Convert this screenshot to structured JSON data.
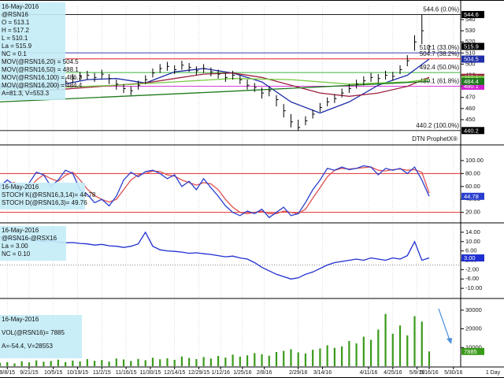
{
  "chart_data": [
    {
      "type": "ohlc",
      "info_lines": [
        "16-May-2016",
        "@RSN16",
        "O = 513.1",
        "H = 517.2",
        "L = 510.1",
        "La = 515.9",
        "NC = 0.1",
        "MOV(@RSN16,20) = 504.5",
        "MOV(@RSN16,50) = 488.1",
        "MOV(@RSN16,100) = 486.3",
        "MOV(@RSN16,200) = 484.4",
        "A=81.3, V=553.3"
      ],
      "watermark": "DTN ProphetX®",
      "xlim": [
        0,
        190
      ],
      "xticks": [
        {
          "value": 3,
          "label": "9/8/15"
        },
        {
          "value": 12,
          "label": "9/21/15"
        },
        {
          "value": 22,
          "label": "10/5/15"
        },
        {
          "value": 32,
          "label": "10/19/15"
        },
        {
          "value": 42,
          "label": "11/2/15"
        },
        {
          "value": 52,
          "label": "11/16/15"
        },
        {
          "value": 62,
          "label": "11/30/15"
        },
        {
          "value": 72,
          "label": "12/14/15"
        },
        {
          "value": 82,
          "label": "12/29/15"
        },
        {
          "value": 91,
          "label": "1/12/16"
        },
        {
          "value": 100,
          "label": "1/25/16"
        },
        {
          "value": 109,
          "label": "2/8/16"
        },
        {
          "value": 123,
          "label": "2/29/16"
        },
        {
          "value": 133,
          "label": "3/14/16"
        },
        {
          "value": 152,
          "label": "4/11/16"
        },
        {
          "value": 162,
          "label": "4/25/16"
        },
        {
          "value": 172,
          "label": "5/9/16"
        },
        {
          "value": 177,
          "label": "5/16/16"
        },
        {
          "value": 187,
          "label": "5/30/16"
        }
      ],
      "ylim": [
        428,
        552
      ],
      "yticks": [
        450,
        460,
        470,
        480,
        490,
        500,
        510,
        520,
        530,
        540
      ],
      "x": [
        0,
        3,
        6,
        9,
        12,
        15,
        18,
        21,
        24,
        27,
        30,
        33,
        36,
        39,
        42,
        45,
        48,
        51,
        54,
        57,
        60,
        63,
        66,
        69,
        72,
        75,
        78,
        81,
        84,
        87,
        90,
        93,
        96,
        99,
        102,
        105,
        108,
        111,
        114,
        117,
        120,
        123,
        126,
        129,
        132,
        135,
        138,
        141,
        144,
        147,
        150,
        153,
        156,
        159,
        162,
        165,
        168,
        171,
        174,
        177
      ],
      "high": [
        483,
        481,
        484,
        480,
        482,
        486,
        484,
        487,
        485,
        488,
        491,
        493,
        494,
        492,
        495,
        491,
        486,
        482,
        480,
        485,
        490,
        496,
        500,
        502,
        499,
        503,
        501,
        498,
        500,
        497,
        495,
        492,
        494,
        490,
        486,
        483,
        479,
        480,
        472,
        464,
        455,
        450,
        453,
        459,
        465,
        470,
        473,
        478,
        482,
        486,
        489,
        492,
        491,
        494,
        493,
        499,
        508,
        526,
        544.6,
        517.2
      ],
      "low": [
        475,
        473,
        477,
        472,
        474,
        478,
        476,
        479,
        477,
        480,
        483,
        485,
        486,
        484,
        487,
        482,
        477,
        474,
        472,
        477,
        482,
        488,
        492,
        494,
        491,
        495,
        493,
        490,
        492,
        489,
        487,
        484,
        486,
        482,
        477,
        475,
        469,
        471,
        462,
        452,
        443,
        440.2,
        445,
        451,
        457,
        462,
        465,
        470,
        474,
        478,
        481,
        484,
        483,
        486,
        485,
        491,
        498,
        512,
        518,
        510.1
      ],
      "close": [
        479,
        477,
        481,
        476,
        478,
        482,
        480,
        483,
        481,
        484,
        487,
        489,
        490,
        488,
        491,
        487,
        482,
        478,
        476,
        481,
        486,
        492,
        496,
        498,
        495,
        499,
        497,
        494,
        496,
        493,
        491,
        488,
        490,
        486,
        481,
        479,
        474,
        476,
        468,
        458,
        448,
        443,
        449,
        455,
        461,
        466,
        469,
        474,
        478,
        482,
        485,
        488,
        487,
        490,
        489,
        495,
        503,
        520,
        530,
        515.9
      ],
      "close_color": "#000000",
      "bar_color": "#000000",
      "series": [
        {
          "name": "MOV(@RSN16,20)",
          "color": "#1f2ea8",
          "x": [
            0,
            12,
            24,
            36,
            48,
            60,
            72,
            84,
            96,
            108,
            120,
            132,
            144,
            156,
            168,
            177
          ],
          "values": [
            480,
            479,
            481,
            486,
            487,
            483,
            493,
            496,
            492,
            484,
            466,
            456,
            466,
            481,
            490,
            504.5
          ]
        },
        {
          "name": "MOV(@RSN16,50)",
          "color": "#9c2340",
          "x": [
            0,
            12,
            24,
            36,
            48,
            60,
            72,
            84,
            96,
            108,
            120,
            132,
            144,
            156,
            168,
            177
          ],
          "values": [
            474,
            476,
            477,
            479,
            481,
            483,
            487,
            491,
            492,
            488,
            481,
            474,
            471,
            474,
            480,
            488.1
          ]
        },
        {
          "name": "MOV(@RSN16,100)",
          "color": "#7ac943",
          "x": [
            0,
            24,
            48,
            72,
            96,
            120,
            144,
            168,
            177
          ],
          "values": [
            478,
            479,
            481,
            484,
            487,
            486,
            482,
            484,
            486.3
          ]
        },
        {
          "name": "MOV(@RSN16,200)",
          "color": "#1e7a1e",
          "x": [
            0,
            90,
            177
          ],
          "values": [
            466,
            475,
            484.4
          ]
        }
      ],
      "fib_levels": [
        {
          "value": 544.6,
          "label": "544.6 (0.0%)",
          "color": "#000000",
          "box": true
        },
        {
          "value": 510.1,
          "label": "510.1 (33.0%)",
          "color": "#3c3cb4",
          "box": false
        },
        {
          "value": 504.7,
          "label": "504.7 (38.2%)",
          "color": "#e02020",
          "box": false
        },
        {
          "value": 492.4,
          "label": "492.4 (50.0%)",
          "color": "#3cb43c",
          "box": false
        },
        {
          "value": 480.1,
          "label": "480.1 (61.8%)",
          "color": "#d020d0",
          "box": true
        },
        {
          "value": 440.2,
          "label": "440.2 (100.0%)",
          "color": "#000000",
          "box": true
        }
      ]
    },
    {
      "type": "line",
      "info_lines": [
        "16-May-2016",
        "STOCH K(@RSN16,3,14)= 44.78",
        "STOCH D(@RSN16,3)= 49.76"
      ],
      "ylim": [
        5,
        123
      ],
      "yticks": [
        {
          "value": 100,
          "label": "100.00"
        },
        {
          "value": 80,
          "label": "80.00"
        },
        {
          "value": 60,
          "label": "60.00"
        },
        {
          "value": 40,
          "label": "40.00"
        },
        {
          "value": 20,
          "label": "20.00"
        }
      ],
      "levels": [
        80,
        20
      ],
      "level_color": "#e03030",
      "x": [
        0,
        3,
        6,
        9,
        12,
        15,
        18,
        21,
        24,
        27,
        30,
        33,
        36,
        39,
        42,
        45,
        48,
        51,
        54,
        57,
        60,
        63,
        66,
        69,
        72,
        75,
        78,
        81,
        84,
        87,
        90,
        93,
        96,
        99,
        102,
        105,
        108,
        111,
        114,
        117,
        120,
        123,
        126,
        129,
        132,
        135,
        138,
        141,
        144,
        147,
        150,
        153,
        156,
        159,
        162,
        165,
        168,
        171,
        174,
        177
      ],
      "series": [
        {
          "name": "STOCH D",
          "color": "#e05050",
          "box": false,
          "values": [
            58,
            65,
            66,
            58,
            56,
            70,
            78,
            72,
            68,
            77,
            82,
            70,
            56,
            46,
            40,
            36,
            40,
            55,
            70,
            78,
            80,
            84,
            83,
            78,
            76,
            70,
            66,
            62,
            66,
            64,
            55,
            40,
            28,
            20,
            18,
            20,
            22,
            18,
            18,
            22,
            20,
            18,
            25,
            42,
            58,
            75,
            85,
            88,
            87,
            88,
            89,
            90,
            85,
            84,
            86,
            87,
            85,
            86,
            82,
            49.76
          ]
        },
        {
          "name": "STOCH K",
          "color": "#2a3fcf",
          "box": true,
          "values": [
            60,
            70,
            62,
            45,
            65,
            82,
            78,
            60,
            70,
            85,
            80,
            55,
            48,
            35,
            40,
            30,
            45,
            70,
            82,
            75,
            83,
            85,
            80,
            72,
            78,
            60,
            68,
            55,
            72,
            58,
            45,
            30,
            20,
            15,
            22,
            18,
            25,
            12,
            20,
            28,
            15,
            18,
            35,
            55,
            70,
            88,
            85,
            90,
            86,
            88,
            92,
            90,
            78,
            88,
            85,
            88,
            80,
            90,
            70,
            44.78
          ]
        }
      ]
    },
    {
      "type": "line",
      "info_lines": [
        "16-May-2016",
        "@RSN16-@RSX16",
        "La = 3.00",
        "NC = 0.10"
      ],
      "ylim": [
        -14,
        17
      ],
      "yticks": [
        {
          "value": 14,
          "label": "14.00"
        },
        {
          "value": 10,
          "label": "10.00"
        },
        {
          "value": 6,
          "label": "6.00"
        },
        {
          "value": 2,
          "label": "2.00"
        },
        {
          "value": -2,
          "label": "-2.00"
        },
        {
          "value": -6,
          "label": "-6.00"
        },
        {
          "value": -10,
          "label": "-10.00"
        }
      ],
      "zero_line": true,
      "x": [
        0,
        3,
        6,
        9,
        12,
        15,
        18,
        21,
        24,
        27,
        30,
        33,
        36,
        39,
        42,
        45,
        48,
        51,
        54,
        57,
        60,
        63,
        66,
        69,
        72,
        75,
        78,
        81,
        84,
        87,
        90,
        93,
        96,
        99,
        102,
        105,
        108,
        111,
        114,
        117,
        120,
        123,
        126,
        129,
        132,
        135,
        138,
        141,
        144,
        147,
        150,
        153,
        156,
        159,
        162,
        165,
        168,
        171,
        174,
        177
      ],
      "series": [
        {
          "name": "@RSN16-@RSX16",
          "color": "#1f2ecf",
          "box": true,
          "last_label": "3.00",
          "values": [
            12,
            11.5,
            11,
            11.2,
            10.8,
            10.5,
            10,
            10.4,
            9.8,
            9.5,
            9.6,
            9.2,
            9,
            8.5,
            8.8,
            8.2,
            8,
            7.5,
            8,
            9,
            14,
            8,
            6.5,
            6,
            5.8,
            5.5,
            5,
            5.2,
            4.8,
            4.5,
            4,
            3.5,
            3.8,
            3,
            2.5,
            1,
            -1,
            -2.5,
            -4,
            -5,
            -6,
            -5.5,
            -4,
            -3,
            -1.5,
            0,
            1,
            1.5,
            2,
            2.5,
            2,
            3,
            2.5,
            2,
            3,
            2.5,
            4,
            10,
            2,
            3
          ]
        }
      ]
    },
    {
      "type": "bar",
      "info_lines": [
        "16-May-2016",
        "VOL(@RSN16)= 7885",
        "A=-54.4, V=28553"
      ],
      "ylim": [
        0,
        35000
      ],
      "yticks": [
        30000,
        20000,
        10000
      ],
      "color": "#3a9a1a",
      "x": [
        0,
        3,
        6,
        9,
        12,
        15,
        18,
        21,
        24,
        27,
        30,
        33,
        36,
        39,
        42,
        45,
        48,
        51,
        54,
        57,
        60,
        63,
        66,
        69,
        72,
        75,
        78,
        81,
        84,
        87,
        90,
        93,
        96,
        99,
        102,
        105,
        108,
        111,
        114,
        117,
        120,
        123,
        126,
        129,
        132,
        135,
        138,
        141,
        144,
        147,
        150,
        153,
        156,
        159,
        162,
        165,
        168,
        171,
        174,
        177
      ],
      "values": [
        1800,
        2200,
        1500,
        2600,
        2000,
        3100,
        2400,
        2800,
        3500,
        2200,
        3000,
        2600,
        3800,
        2900,
        3300,
        2500,
        4100,
        3600,
        2800,
        3900,
        3200,
        4500,
        3700,
        4200,
        3400,
        5200,
        4400,
        3800,
        4900,
        4100,
        5500,
        4600,
        6200,
        5100,
        5800,
        7000,
        6400,
        5600,
        7600,
        8200,
        9100,
        7400,
        6800,
        8800,
        9500,
        11200,
        9800,
        10600,
        13500,
        12200,
        15800,
        14100,
        19600,
        28000,
        17400,
        21800,
        16500,
        26800,
        23900,
        7885
      ]
    }
  ],
  "footer": {
    "interval": "1 Day"
  }
}
